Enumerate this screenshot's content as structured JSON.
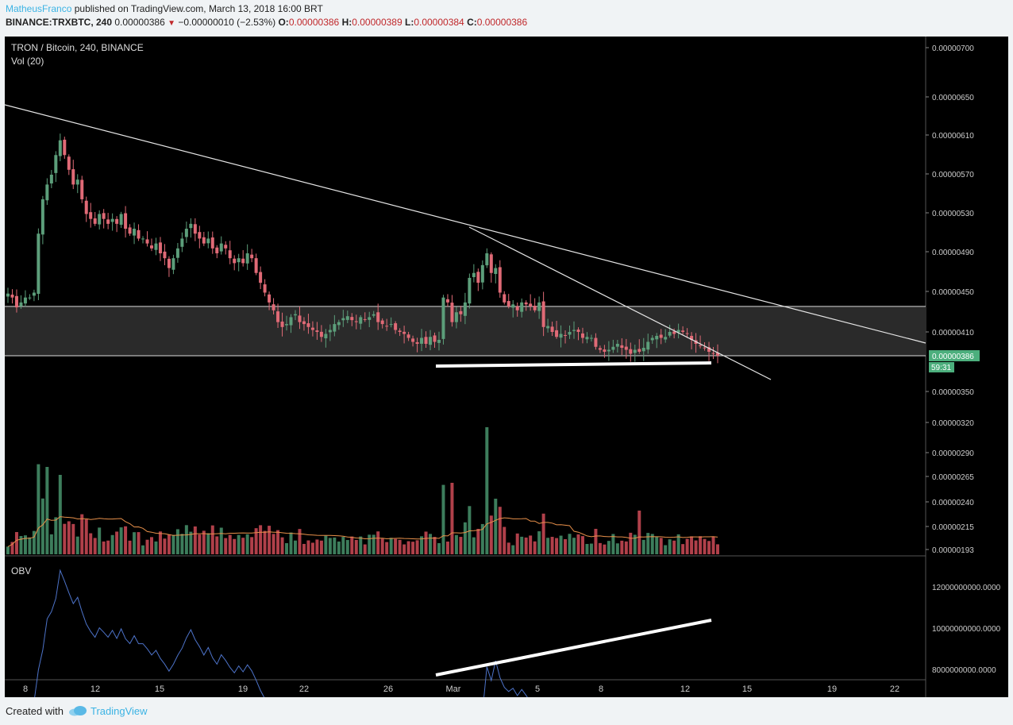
{
  "header": {
    "author": "MatheusFranco",
    "published_text": "published on TradingView.com, March 13, 2018 16:00 BRT",
    "symbol": "BINANCE:TRXBTC, 240",
    "last": "0.00000386",
    "change": "−0.00000010 (−2.53%)",
    "o_label": "O:",
    "o_value": "0.00000386",
    "h_label": "H:",
    "h_value": "0.00000389",
    "l_label": "L:",
    "l_value": "0.00000384",
    "c_label": "C:",
    "c_value": "0.00000386"
  },
  "footer": {
    "created_with": "Created with",
    "brand": "TradingView"
  },
  "colors": {
    "bull": "#3d7d5c",
    "bear": "#b0404a",
    "bull_bright": "#5c9e7a",
    "bear_bright": "#e06a76",
    "obv": "#4d73c9",
    "vol_ma": "#e8904a",
    "price_tag": "#4caf7d",
    "zone": "#2a2a2a"
  },
  "chart_data": {
    "type": "candlestick",
    "title": "TRON / Bitcoin, 240, BINANCE",
    "panes": {
      "price": {
        "label": "TRON / Bitcoin, 240, BINANCE",
        "y_ticks": [
          7e-07,
          6.5e-06,
          6.1e-06,
          5.7e-06,
          5.3e-06,
          4.9e-06,
          4.5e-06,
          4.1e-06,
          3.5e-06,
          3.2e-06,
          2.9e-06,
          2.65e-06,
          2.4e-06,
          2.15e-06,
          1.93e-06
        ],
        "y_tick_labels": [
          "0.00000700",
          "0.00000650",
          "0.00000610",
          "0.00000570",
          "0.00000530",
          "0.00000490",
          "0.00000450",
          "0.00000410",
          "0.00000350",
          "0.00000320",
          "0.00000290",
          "0.00000265",
          "0.00000240",
          "0.00000215",
          "0.00000193"
        ],
        "current_price_label": "0.00000386",
        "countdown_label": "59:31",
        "zone": [
          3.86e-06,
          4.36e-06
        ]
      },
      "volume": {
        "label": "Vol (20)"
      },
      "obv": {
        "label": "OBV",
        "y_ticks": [
          12000000000,
          10000000000,
          8000000000
        ],
        "y_tick_labels": [
          "12000000000.0000",
          "10000000000.0000",
          "8000000000.0000"
        ]
      }
    },
    "x_tick_labels": [
      "8",
      "12",
      "15",
      "19",
      "22",
      "26",
      "Mar",
      "5",
      "8",
      "12",
      "15",
      "19",
      "22"
    ],
    "closes": [
      449,
      445,
      435,
      440,
      445,
      445,
      450,
      510,
      545,
      560,
      570,
      590,
      605,
      590,
      575,
      560,
      565,
      545,
      530,
      525,
      520,
      530,
      525,
      520,
      525,
      520,
      530,
      515,
      510,
      515,
      505,
      505,
      500,
      495,
      500,
      490,
      485,
      475,
      485,
      495,
      505,
      515,
      520,
      510,
      505,
      500,
      505,
      495,
      490,
      500,
      495,
      485,
      480,
      485,
      480,
      490,
      485,
      470,
      460,
      450,
      440,
      432,
      420,
      415,
      418,
      425,
      428,
      420,
      418,
      415,
      412,
      410,
      405,
      408,
      412,
      418,
      420,
      424,
      426,
      422,
      420,
      425,
      423,
      425,
      428,
      420,
      418,
      416,
      418,
      412,
      410,
      408,
      404,
      400,
      398,
      404,
      398,
      405,
      400,
      402,
      445,
      440,
      420,
      430,
      428,
      440,
      465,
      470,
      460,
      478,
      490,
      470,
      475,
      450,
      440,
      436,
      438,
      432,
      440,
      438,
      436,
      432,
      440,
      415,
      416,
      410,
      405,
      408,
      406,
      410,
      412,
      410,
      404,
      405,
      404,
      395,
      392,
      390,
      392,
      395,
      398,
      394,
      392,
      388,
      392,
      390,
      394,
      400,
      404,
      406,
      404,
      405,
      410,
      408,
      412,
      410,
      408,
      402,
      398,
      396,
      394,
      390,
      388,
      386
    ],
    "x_labels_dates": [
      "Feb 8",
      "Feb 12",
      "Feb 15",
      "Feb 19",
      "Feb 22",
      "Feb 26",
      "Mar 1",
      "Mar 5",
      "Mar 8",
      "Mar 12",
      "Mar 15",
      "Mar 19",
      "Mar 22"
    ]
  }
}
